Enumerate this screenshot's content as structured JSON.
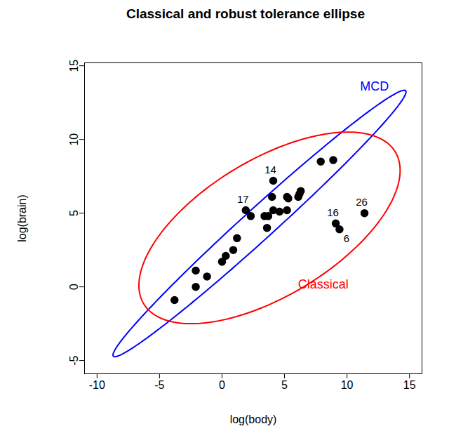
{
  "chart_data": {
    "type": "scatter",
    "title": "Classical and robust tolerance ellipse",
    "x_label": "log(body)",
    "y_label": "log(brain)",
    "xlim": [
      -11,
      16
    ],
    "ylim": [
      -5.9,
      15.2
    ],
    "xticks": [
      -10,
      -5,
      0,
      5,
      10,
      15
    ],
    "yticks": [
      -5,
      0,
      5,
      10,
      15
    ],
    "grid": false,
    "color": "#000000",
    "marker": "circle",
    "x": [
      -3.8,
      -2.1,
      -2.1,
      -1.2,
      0.0,
      0.3,
      0.9,
      1.2,
      1.9,
      2.3,
      3.4,
      3.6,
      3.7,
      4.0,
      4.1,
      4.1,
      4.6,
      5.2,
      5.3,
      5.2,
      6.1,
      6.2,
      6.3,
      7.9,
      8.9,
      9.1,
      9.4,
      11.4
    ],
    "y": [
      -0.9,
      1.1,
      0.0,
      0.7,
      1.7,
      2.1,
      2.5,
      3.3,
      5.2,
      4.8,
      4.8,
      4.0,
      4.8,
      6.1,
      7.2,
      5.2,
      5.1,
      6.1,
      6.0,
      5.2,
      6.1,
      6.3,
      6.5,
      8.5,
      8.6,
      4.3,
      3.9,
      5.0
    ],
    "labels": [
      null,
      null,
      null,
      null,
      null,
      null,
      null,
      null,
      "17",
      null,
      null,
      null,
      null,
      null,
      "14",
      null,
      null,
      null,
      null,
      null,
      null,
      null,
      null,
      null,
      null,
      "16",
      "6",
      "26"
    ],
    "ellipses": [
      {
        "name": "MCD",
        "color": "#0000ff",
        "center": [
          3.0,
          4.3
        ],
        "axis_1": [
          11.7,
          9.0
        ],
        "axis_2": [
          -0.75,
          0.85
        ],
        "label_at": [
          12.2,
          13.6
        ]
      },
      {
        "name": "Classical",
        "color": "#ff0000",
        "center": [
          3.8,
          4.0
        ],
        "axis_1": [
          10.45,
          3.9
        ],
        "axis_2": [
          0.0,
          5.2
        ],
        "label_at": [
          8.1,
          0.15
        ]
      }
    ]
  }
}
